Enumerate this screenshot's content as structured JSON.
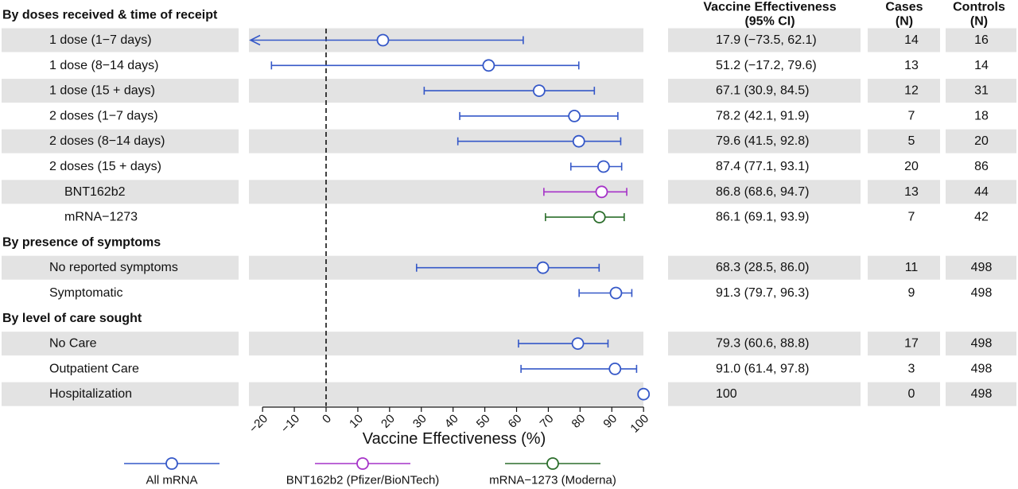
{
  "chart_data": {
    "type": "forest",
    "xlabel": "Vaccine Effectiveness (%)",
    "xlim": [
      -20,
      100
    ],
    "xticks": [
      -20,
      -10,
      0,
      10,
      20,
      30,
      40,
      50,
      60,
      70,
      80,
      90,
      100
    ],
    "reference_line_x": 0,
    "column_headers": {
      "ve": "Vaccine Effectiveness\n(95% CI)",
      "cases": "Cases\n(N)",
      "controls": "Controls\n(N)"
    },
    "series": [
      {
        "name": "All mRNA",
        "color": "#3558c8"
      },
      {
        "name": "BNT162b2 (Pfizer/BioNTech)",
        "color": "#a633c8"
      },
      {
        "name": "mRNA−1273 (Moderna)",
        "color": "#2c6e2c"
      }
    ],
    "sections": [
      {
        "title": "By doses received & time of receipt",
        "rows": [
          {
            "label": "1 dose (1−7 days)",
            "series": 0,
            "ve": 17.9,
            "lo": -73.5,
            "hi": 62.1,
            "arrow_left": true,
            "ve_text": "17.9 (−73.5, 62.1)",
            "cases": "14",
            "controls": "16"
          },
          {
            "label": "1 dose (8−14 days)",
            "series": 0,
            "ve": 51.2,
            "lo": -17.2,
            "hi": 79.6,
            "ve_text": "51.2 (−17.2, 79.6)",
            "cases": "13",
            "controls": "14"
          },
          {
            "label": "1 dose (15 + days)",
            "series": 0,
            "ve": 67.1,
            "lo": 30.9,
            "hi": 84.5,
            "ve_text": "67.1 (30.9, 84.5)",
            "cases": "12",
            "controls": "31"
          },
          {
            "label": "2 doses (1−7 days)",
            "series": 0,
            "ve": 78.2,
            "lo": 42.1,
            "hi": 91.9,
            "ve_text": "78.2 (42.1, 91.9)",
            "cases": "7",
            "controls": "18"
          },
          {
            "label": "2 doses (8−14 days)",
            "series": 0,
            "ve": 79.6,
            "lo": 41.5,
            "hi": 92.8,
            "ve_text": "79.6 (41.5, 92.8)",
            "cases": "5",
            "controls": "20"
          },
          {
            "label": "2 doses (15 + days)",
            "series": 0,
            "ve": 87.4,
            "lo": 77.1,
            "hi": 93.1,
            "ve_text": "87.4 (77.1, 93.1)",
            "cases": "20",
            "controls": "86"
          },
          {
            "label": "BNT162b2",
            "series": 1,
            "indent": true,
            "ve": 86.8,
            "lo": 68.6,
            "hi": 94.7,
            "ve_text": "86.8 (68.6, 94.7)",
            "cases": "13",
            "controls": "44"
          },
          {
            "label": "mRNA−1273",
            "series": 2,
            "indent": true,
            "ve": 86.1,
            "lo": 69.1,
            "hi": 93.9,
            "ve_text": "86.1 (69.1, 93.9)",
            "cases": "7",
            "controls": "42"
          }
        ]
      },
      {
        "title": "By presence of symptoms",
        "rows": [
          {
            "label": "No reported symptoms",
            "series": 0,
            "ve": 68.3,
            "lo": 28.5,
            "hi": 86.0,
            "ve_text": "68.3 (28.5, 86.0)",
            "cases": "11",
            "controls": "498"
          },
          {
            "label": "Symptomatic",
            "series": 0,
            "ve": 91.3,
            "lo": 79.7,
            "hi": 96.3,
            "ve_text": "91.3 (79.7, 96.3)",
            "cases": "9",
            "controls": "498"
          }
        ]
      },
      {
        "title": "By level of care sought",
        "rows": [
          {
            "label": "No Care",
            "series": 0,
            "ve": 79.3,
            "lo": 60.6,
            "hi": 88.8,
            "ve_text": "79.3 (60.6, 88.8)",
            "cases": "17",
            "controls": "498"
          },
          {
            "label": "Outpatient Care",
            "series": 0,
            "ve": 91.0,
            "lo": 61.4,
            "hi": 97.8,
            "ve_text": "91.0 (61.4, 97.8)",
            "cases": "3",
            "controls": "498"
          },
          {
            "label": "Hospitalization",
            "series": 0,
            "ve": 100,
            "lo": 100,
            "hi": 100,
            "ve_text": "100",
            "cases": "0",
            "controls": "498"
          }
        ]
      }
    ],
    "legend_position": "bottom"
  }
}
